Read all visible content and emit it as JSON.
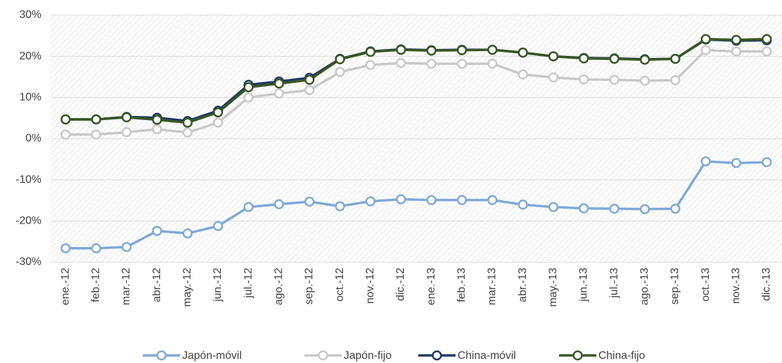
{
  "chart_data": {
    "type": "line",
    "categories": [
      "ene.-12",
      "feb.-12",
      "mar.-12",
      "abr.-12",
      "may.-12",
      "jun.-12",
      "jul.-12",
      "ago.-12",
      "sep.-12",
      "oct.-12",
      "nov.-12",
      "dic.-12",
      "ene.-13",
      "feb.-13",
      "mar.-13",
      "abr.-13",
      "may.-13",
      "jun.-13",
      "jul.-13",
      "ago.-13",
      "sep.-13",
      "oct.-13",
      "nov.-13",
      "dic.-13"
    ],
    "series": [
      {
        "name": "Japón-móvil",
        "color": "#7ea9d8",
        "values": [
          -26.6,
          -26.6,
          -26.3,
          -22.4,
          -23.0,
          -21.2,
          -16.6,
          -15.9,
          -15.3,
          -16.4,
          -15.2,
          -14.7,
          -14.9,
          -14.9,
          -14.9,
          -16.0,
          -16.6,
          -16.9,
          -17.0,
          -17.1,
          -17.0,
          -5.5,
          -5.9,
          -5.7
        ]
      },
      {
        "name": "Japón-fijo",
        "color": "#c8c8c8",
        "values": [
          1.0,
          1.0,
          1.6,
          2.3,
          1.5,
          3.9,
          10.0,
          11.0,
          11.8,
          16.2,
          17.9,
          18.4,
          18.2,
          18.2,
          18.2,
          15.6,
          14.9,
          14.4,
          14.3,
          14.1,
          14.2,
          21.5,
          21.2,
          21.2
        ]
      },
      {
        "name": "China-móvil",
        "color": "#1f3864",
        "values": [
          4.7,
          4.7,
          5.3,
          5.1,
          4.3,
          6.8,
          13.1,
          13.9,
          14.8,
          19.4,
          21.2,
          21.7,
          21.5,
          21.6,
          21.6,
          20.9,
          20.0,
          19.6,
          19.5,
          19.3,
          19.4,
          24.1,
          23.8,
          23.9
        ]
      },
      {
        "name": "China-fijo",
        "color": "#385723",
        "values": [
          4.7,
          4.7,
          5.2,
          4.6,
          3.9,
          6.4,
          12.5,
          13.4,
          14.3,
          19.3,
          21.1,
          21.6,
          21.4,
          21.5,
          21.6,
          20.9,
          20.0,
          19.5,
          19.4,
          19.2,
          19.4,
          24.2,
          24.0,
          24.2
        ]
      }
    ],
    "ylim": [
      -30,
      30
    ],
    "yticks": [
      {
        "value": -30,
        "label": "-30%"
      },
      {
        "value": -20,
        "label": "-20%"
      },
      {
        "value": -10,
        "label": "-10%"
      },
      {
        "value": 0,
        "label": "0%"
      },
      {
        "value": 10,
        "label": "10%"
      },
      {
        "value": 20,
        "label": "20%"
      },
      {
        "value": 30,
        "label": "30%"
      }
    ],
    "grid": true,
    "legend": "bottom"
  }
}
